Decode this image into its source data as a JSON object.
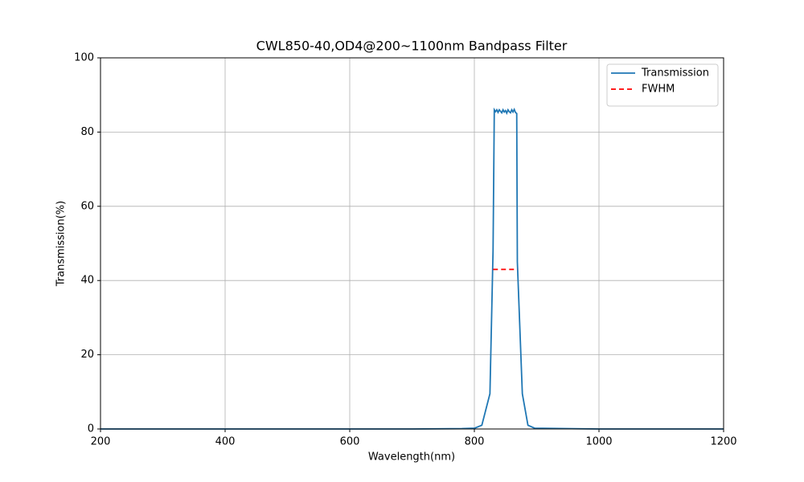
{
  "chart_data": {
    "type": "line",
    "title": "CWL850-40,OD4@200~1100nm Bandpass Filter",
    "x_label": "Wavelength(nm)",
    "y_label": "Transmission(%)",
    "series": [
      {
        "name": "Transmission",
        "color": "#1f77b4",
        "dash": false,
        "x": [
          200,
          300,
          400,
          500,
          600,
          700,
          780,
          800,
          812,
          825,
          830,
          832,
          834,
          836,
          838,
          840,
          842,
          844,
          846,
          848,
          850,
          852,
          854,
          856,
          858,
          860,
          862,
          864,
          866,
          868,
          869,
          877,
          886,
          897,
          1000,
          1100,
          1200
        ],
        "values": [
          0,
          0,
          0,
          0,
          0,
          0,
          0.1,
          0.2,
          1,
          9.5,
          48,
          86,
          85.5,
          86,
          85.3,
          86,
          85.6,
          85.2,
          86,
          85.4,
          85.8,
          85.1,
          86,
          85.5,
          85.2,
          86,
          85.4,
          86.1,
          85.3,
          85,
          45,
          9.5,
          1,
          0.2,
          0,
          0,
          0
        ]
      },
      {
        "name": "FWHM",
        "color": "#ff0000",
        "dash": true,
        "x": [
          830,
          869
        ],
        "values": [
          43,
          43
        ]
      }
    ],
    "xlim": [
      200,
      1200
    ],
    "xticks": [
      200,
      400,
      600,
      800,
      1000,
      1200
    ],
    "ylim": [
      0,
      100
    ],
    "yticks": [
      0,
      20,
      40,
      60,
      80,
      100
    ],
    "grid": true,
    "legend": "upper right"
  }
}
